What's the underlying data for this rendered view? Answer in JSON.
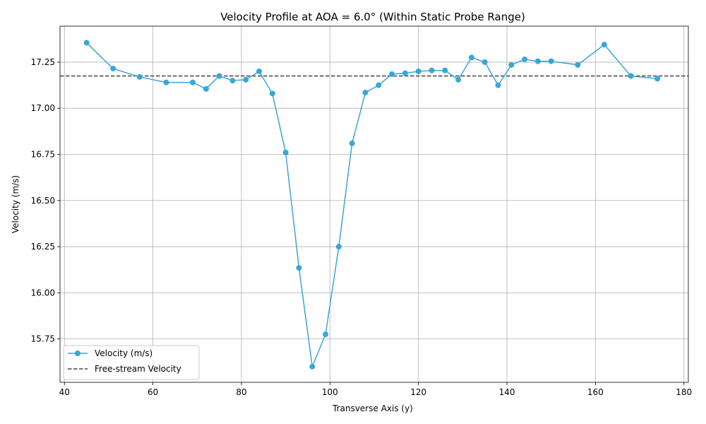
{
  "chart_data": {
    "type": "line",
    "title": "Velocity Profile at AOA = 6.0° (Within Static Probe Range)",
    "xlabel": "Transverse Axis (y)",
    "ylabel": "Velocity (m/s)",
    "xlim": [
      39,
      181
    ],
    "ylim": [
      15.515,
      17.445
    ],
    "xticks": [
      40,
      60,
      80,
      100,
      120,
      140,
      160,
      180
    ],
    "yticks": [
      15.75,
      16.0,
      16.25,
      16.5,
      16.75,
      17.0,
      17.25
    ],
    "ytick_labels": [
      "15.75",
      "16.00",
      "16.25",
      "16.50",
      "16.75",
      "17.00",
      "17.25"
    ],
    "grid": true,
    "legend_position": "lower-left",
    "series": [
      {
        "name": "Velocity (m/s)",
        "color": "#3aa6d8",
        "marker": "circle",
        "x": [
          45,
          51,
          57,
          63,
          69,
          72,
          75,
          78,
          81,
          84,
          87,
          90,
          93,
          96,
          99,
          102,
          105,
          108,
          111,
          114,
          117,
          120,
          123,
          126,
          129,
          132,
          135,
          138,
          141,
          144,
          147,
          150,
          156,
          162,
          168,
          174
        ],
        "y": [
          17.355,
          17.215,
          17.17,
          17.14,
          17.14,
          17.105,
          17.175,
          17.15,
          17.155,
          17.2,
          17.08,
          16.76,
          16.135,
          15.6,
          15.775,
          16.25,
          16.81,
          17.085,
          17.125,
          17.185,
          17.19,
          17.2,
          17.205,
          17.205,
          17.155,
          17.275,
          17.25,
          17.125,
          17.235,
          17.265,
          17.255,
          17.255,
          17.235,
          17.345,
          17.175,
          17.16
        ]
      }
    ],
    "reference_line": {
      "name": "Free-stream Velocity",
      "y": 17.175,
      "color": "#444444",
      "style": "dashed"
    }
  }
}
